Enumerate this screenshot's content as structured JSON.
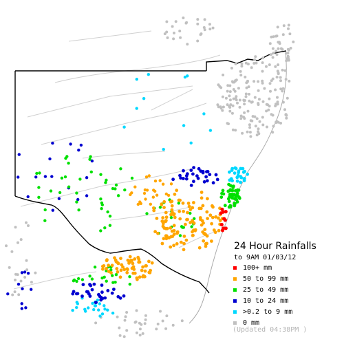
{
  "map": {
    "title": "24 Hour Rainfalls",
    "subtitle": "to 9AM 01/03/12",
    "updated": "(Updated 04:38PM  )",
    "legend": [
      {
        "label": "100+ mm",
        "color": "#ff0000"
      },
      {
        "label": "50  to 99 mm",
        "color": "#ffa500"
      },
      {
        "label": "25  to 49 mm",
        "color": "#00e000"
      },
      {
        "label": "10  to 24 mm",
        "color": "#0000d0"
      },
      {
        "label": ">0.2 to 9 mm",
        "color": "#00d8ff"
      },
      {
        "label": "0 mm",
        "color": "#c0c0c0"
      }
    ]
  }
}
